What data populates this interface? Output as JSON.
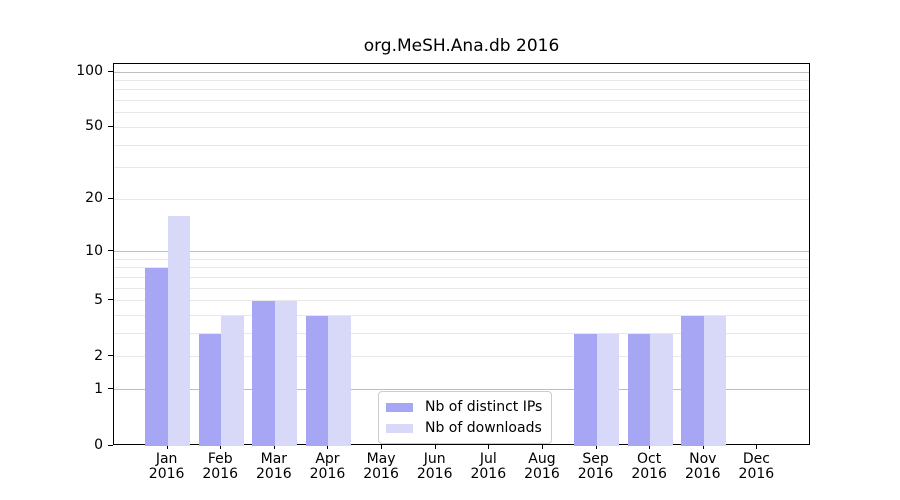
{
  "chart_data": {
    "type": "bar",
    "title": "org.MeSH.Ana.db 2016",
    "categories": [
      "Jan",
      "Feb",
      "Mar",
      "Apr",
      "May",
      "Jun",
      "Jul",
      "Aug",
      "Sep",
      "Oct",
      "Nov",
      "Dec"
    ],
    "x_year_label": "2016",
    "series": [
      {
        "name": "Nb of distinct IPs",
        "color": "#a6a6f4",
        "values": [
          8,
          3,
          5,
          4,
          0,
          0,
          0,
          0,
          3,
          3,
          4,
          0
        ]
      },
      {
        "name": "Nb of downloads",
        "color": "#d8d8f8",
        "values": [
          16,
          4,
          5,
          4,
          0,
          0,
          0,
          0,
          3,
          3,
          4,
          0
        ]
      }
    ],
    "yscale": "log1p",
    "ylim": [
      0,
      112
    ],
    "yticks": [
      0,
      1,
      2,
      5,
      10,
      20,
      50,
      100
    ],
    "major_grid_values": [
      1,
      10,
      100
    ],
    "minor_grid_values": [
      2,
      3,
      4,
      5,
      6,
      7,
      8,
      9,
      20,
      30,
      40,
      50,
      60,
      70,
      80,
      90
    ],
    "grid": true,
    "legend_position": "lower center",
    "xlabel": "",
    "ylabel": ""
  },
  "colors": {
    "bar_distinct_ips": "#a6a6f4",
    "bar_downloads": "#d8d8f8",
    "major_grid": "#bdbdbd",
    "minor_grid": "#e8e8e8",
    "axis": "#000000",
    "legend_border": "#cccccc",
    "background": "#ffffff"
  }
}
